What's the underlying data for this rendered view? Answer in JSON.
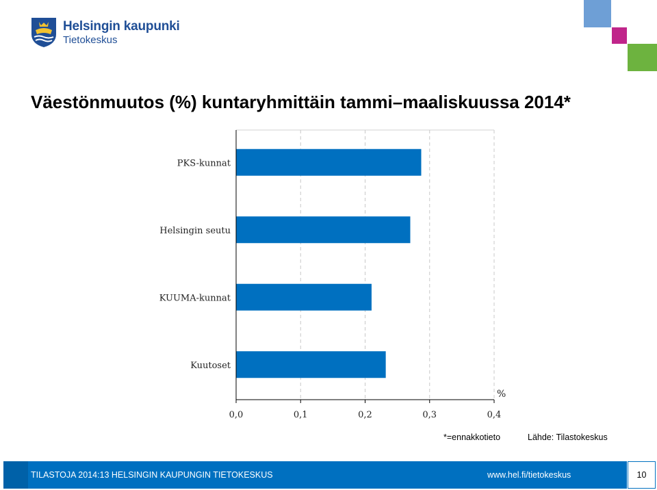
{
  "header": {
    "org_name": "Helsingin kaupunki",
    "org_sub": "Tietokeskus",
    "title": "Väestönmuutos (%) kuntaryhmittäin tammi–maaliskuussa 2014*"
  },
  "colors": {
    "bar": "#0070c0",
    "brand": "#1f4e96",
    "footer": "#0070c0"
  },
  "chart_data": {
    "type": "bar",
    "orientation": "horizontal",
    "categories": [
      "PKS-kunnat",
      "Helsingin seutu",
      "KUUMA-kunnat",
      "Kuutoset"
    ],
    "values": [
      0.287,
      0.27,
      0.21,
      0.232
    ],
    "xlim": [
      0.0,
      0.4
    ],
    "xticks": [
      "0,0",
      "0,1",
      "0,2",
      "0,3",
      "0,4"
    ],
    "unit": "%",
    "grid": "vertical dashed"
  },
  "notes": {
    "preliminary": "*=ennakkotieto",
    "source": "Lähde: Tilastokeskus"
  },
  "footer": {
    "text": "TILASTOJA 2014:13 HELSINGIN KAUPUNGIN TIETOKESKUS",
    "url": "www.hel.fi/tietokeskus",
    "page": "10"
  }
}
